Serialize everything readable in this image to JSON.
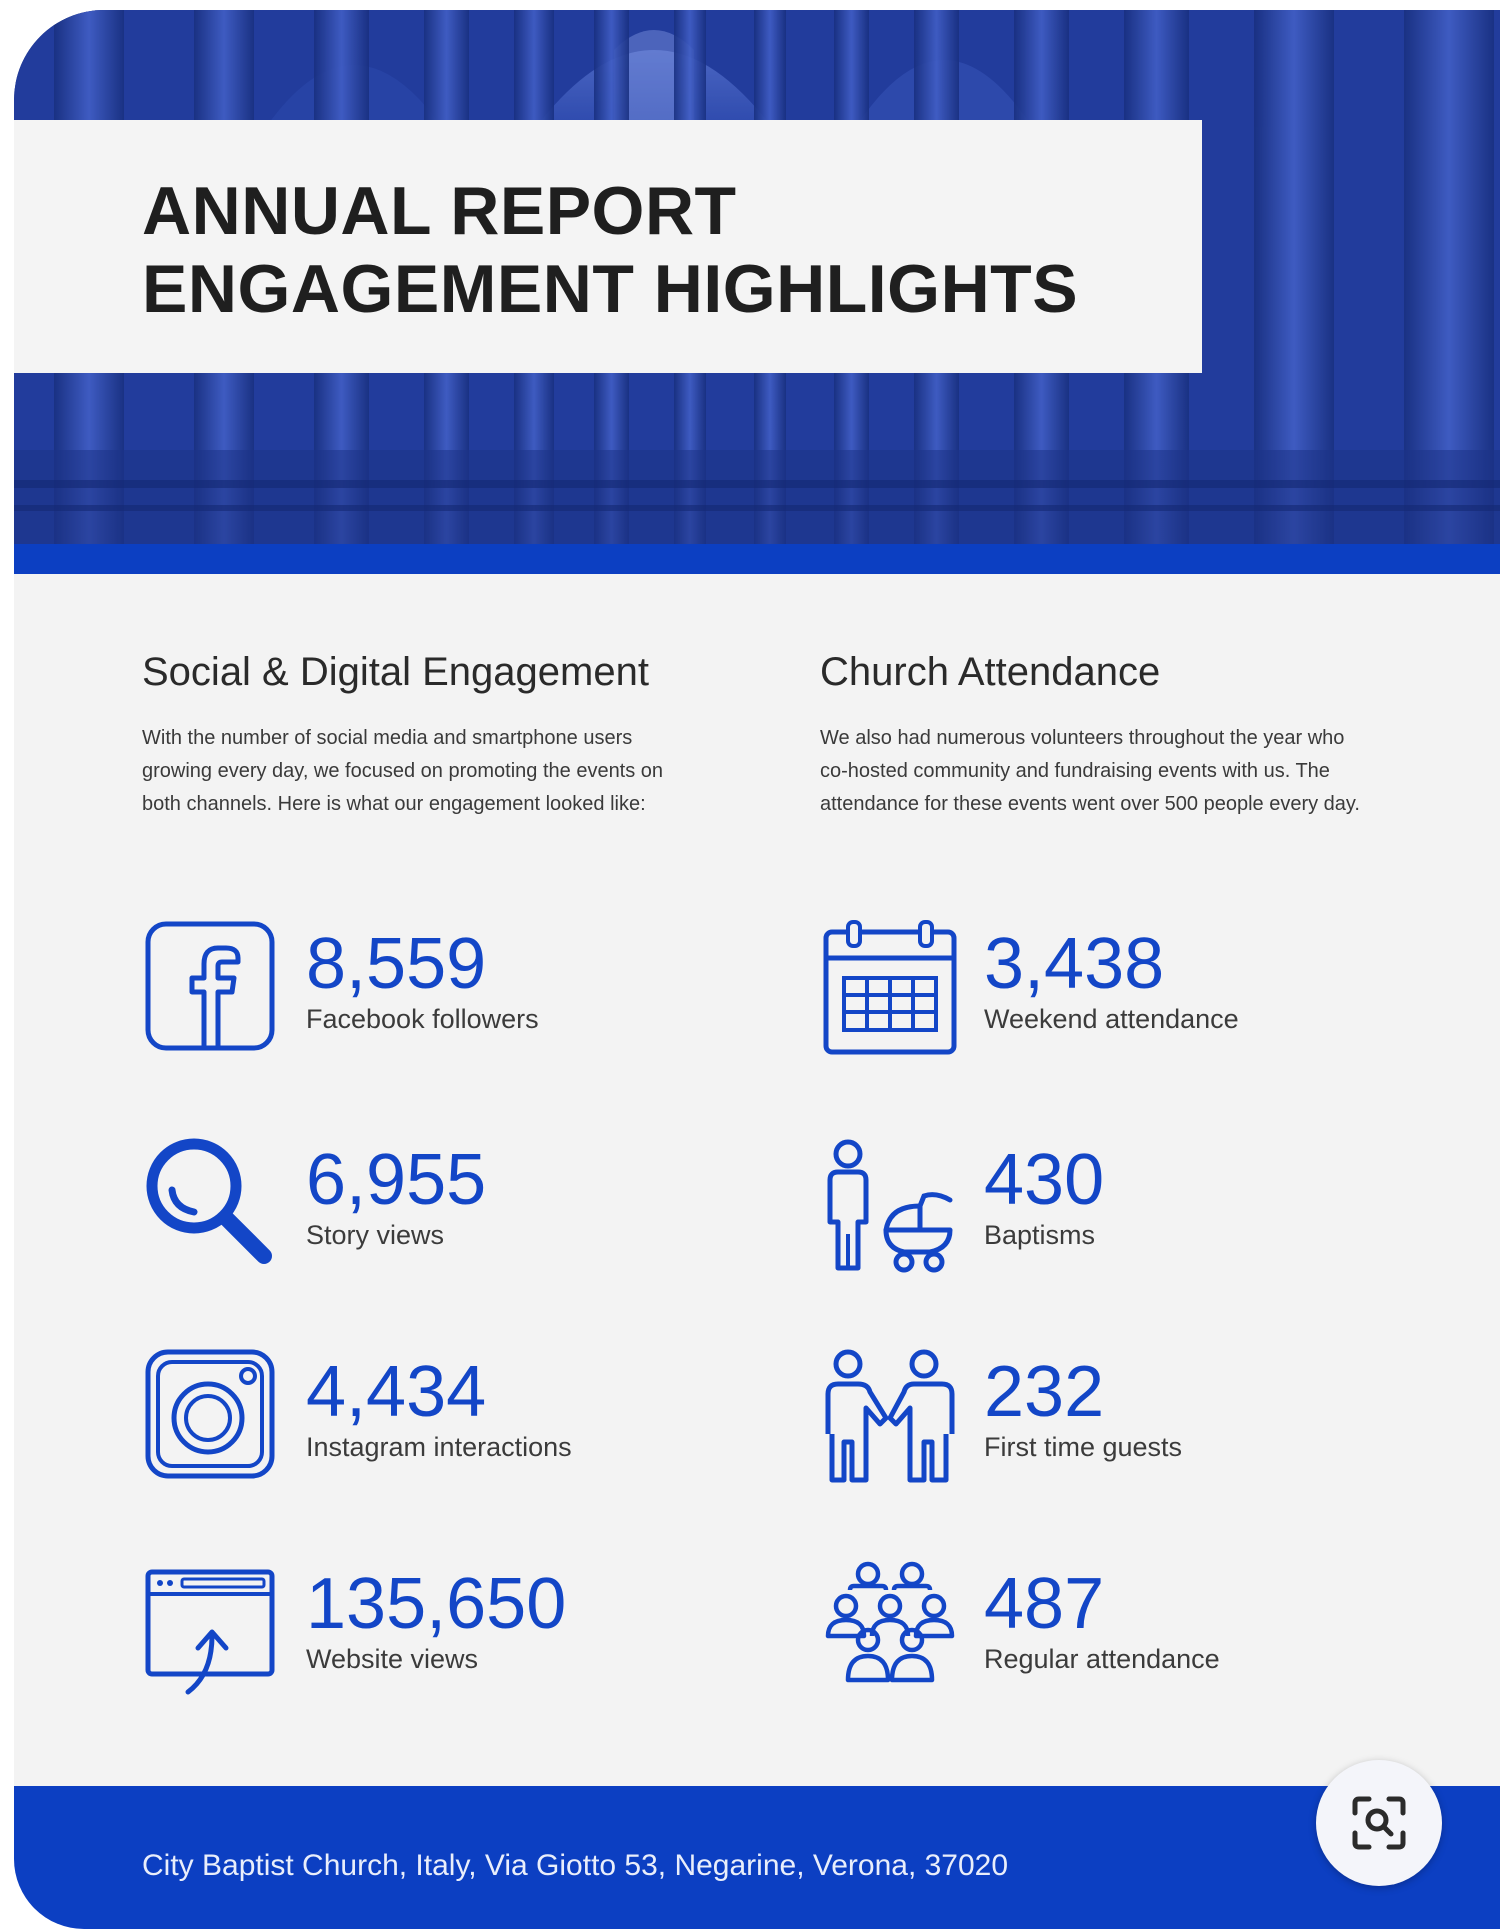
{
  "header": {
    "title_line1": "ANNUAL REPORT",
    "title_line2": "ENGAGEMENT HIGHLIGHTS"
  },
  "social": {
    "title": "Social & Digital Engagement",
    "description": "With the number of social media and smartphone users growing every day, we focused on promoting the events on both channels. Here is what our engagement looked like:",
    "stats": [
      {
        "value": "8,559",
        "label": "Facebook followers",
        "icon": "facebook-icon"
      },
      {
        "value": "6,955",
        "label": "Story views",
        "icon": "search-icon"
      },
      {
        "value": "4,434",
        "label": "Instagram interactions",
        "icon": "instagram-icon"
      },
      {
        "value": "135,650",
        "label": "Website views",
        "icon": "website-upload-icon"
      }
    ]
  },
  "attendance": {
    "title": "Church Attendance",
    "description": "We also had numerous volunteers throughout the year who co-hosted community and fundraising events with us. The attendance for these events went over 500 people every day.",
    "stats": [
      {
        "value": "3,438",
        "label": "Weekend attendance",
        "icon": "calendar-icon"
      },
      {
        "value": "430",
        "label": "Baptisms",
        "icon": "parent-stroller-icon"
      },
      {
        "value": "232",
        "label": "First time guests",
        "icon": "handshake-people-icon"
      },
      {
        "value": "487",
        "label": "Regular attendance",
        "icon": "group-people-icon"
      }
    ]
  },
  "footer": {
    "address": "City Baptist Church, Italy, Via Giotto 53, Negarine, Verona, 37020"
  },
  "colors": {
    "accent": "#1346c7",
    "brand_blue": "#0c3fc2",
    "background": "#f3f3f3"
  }
}
